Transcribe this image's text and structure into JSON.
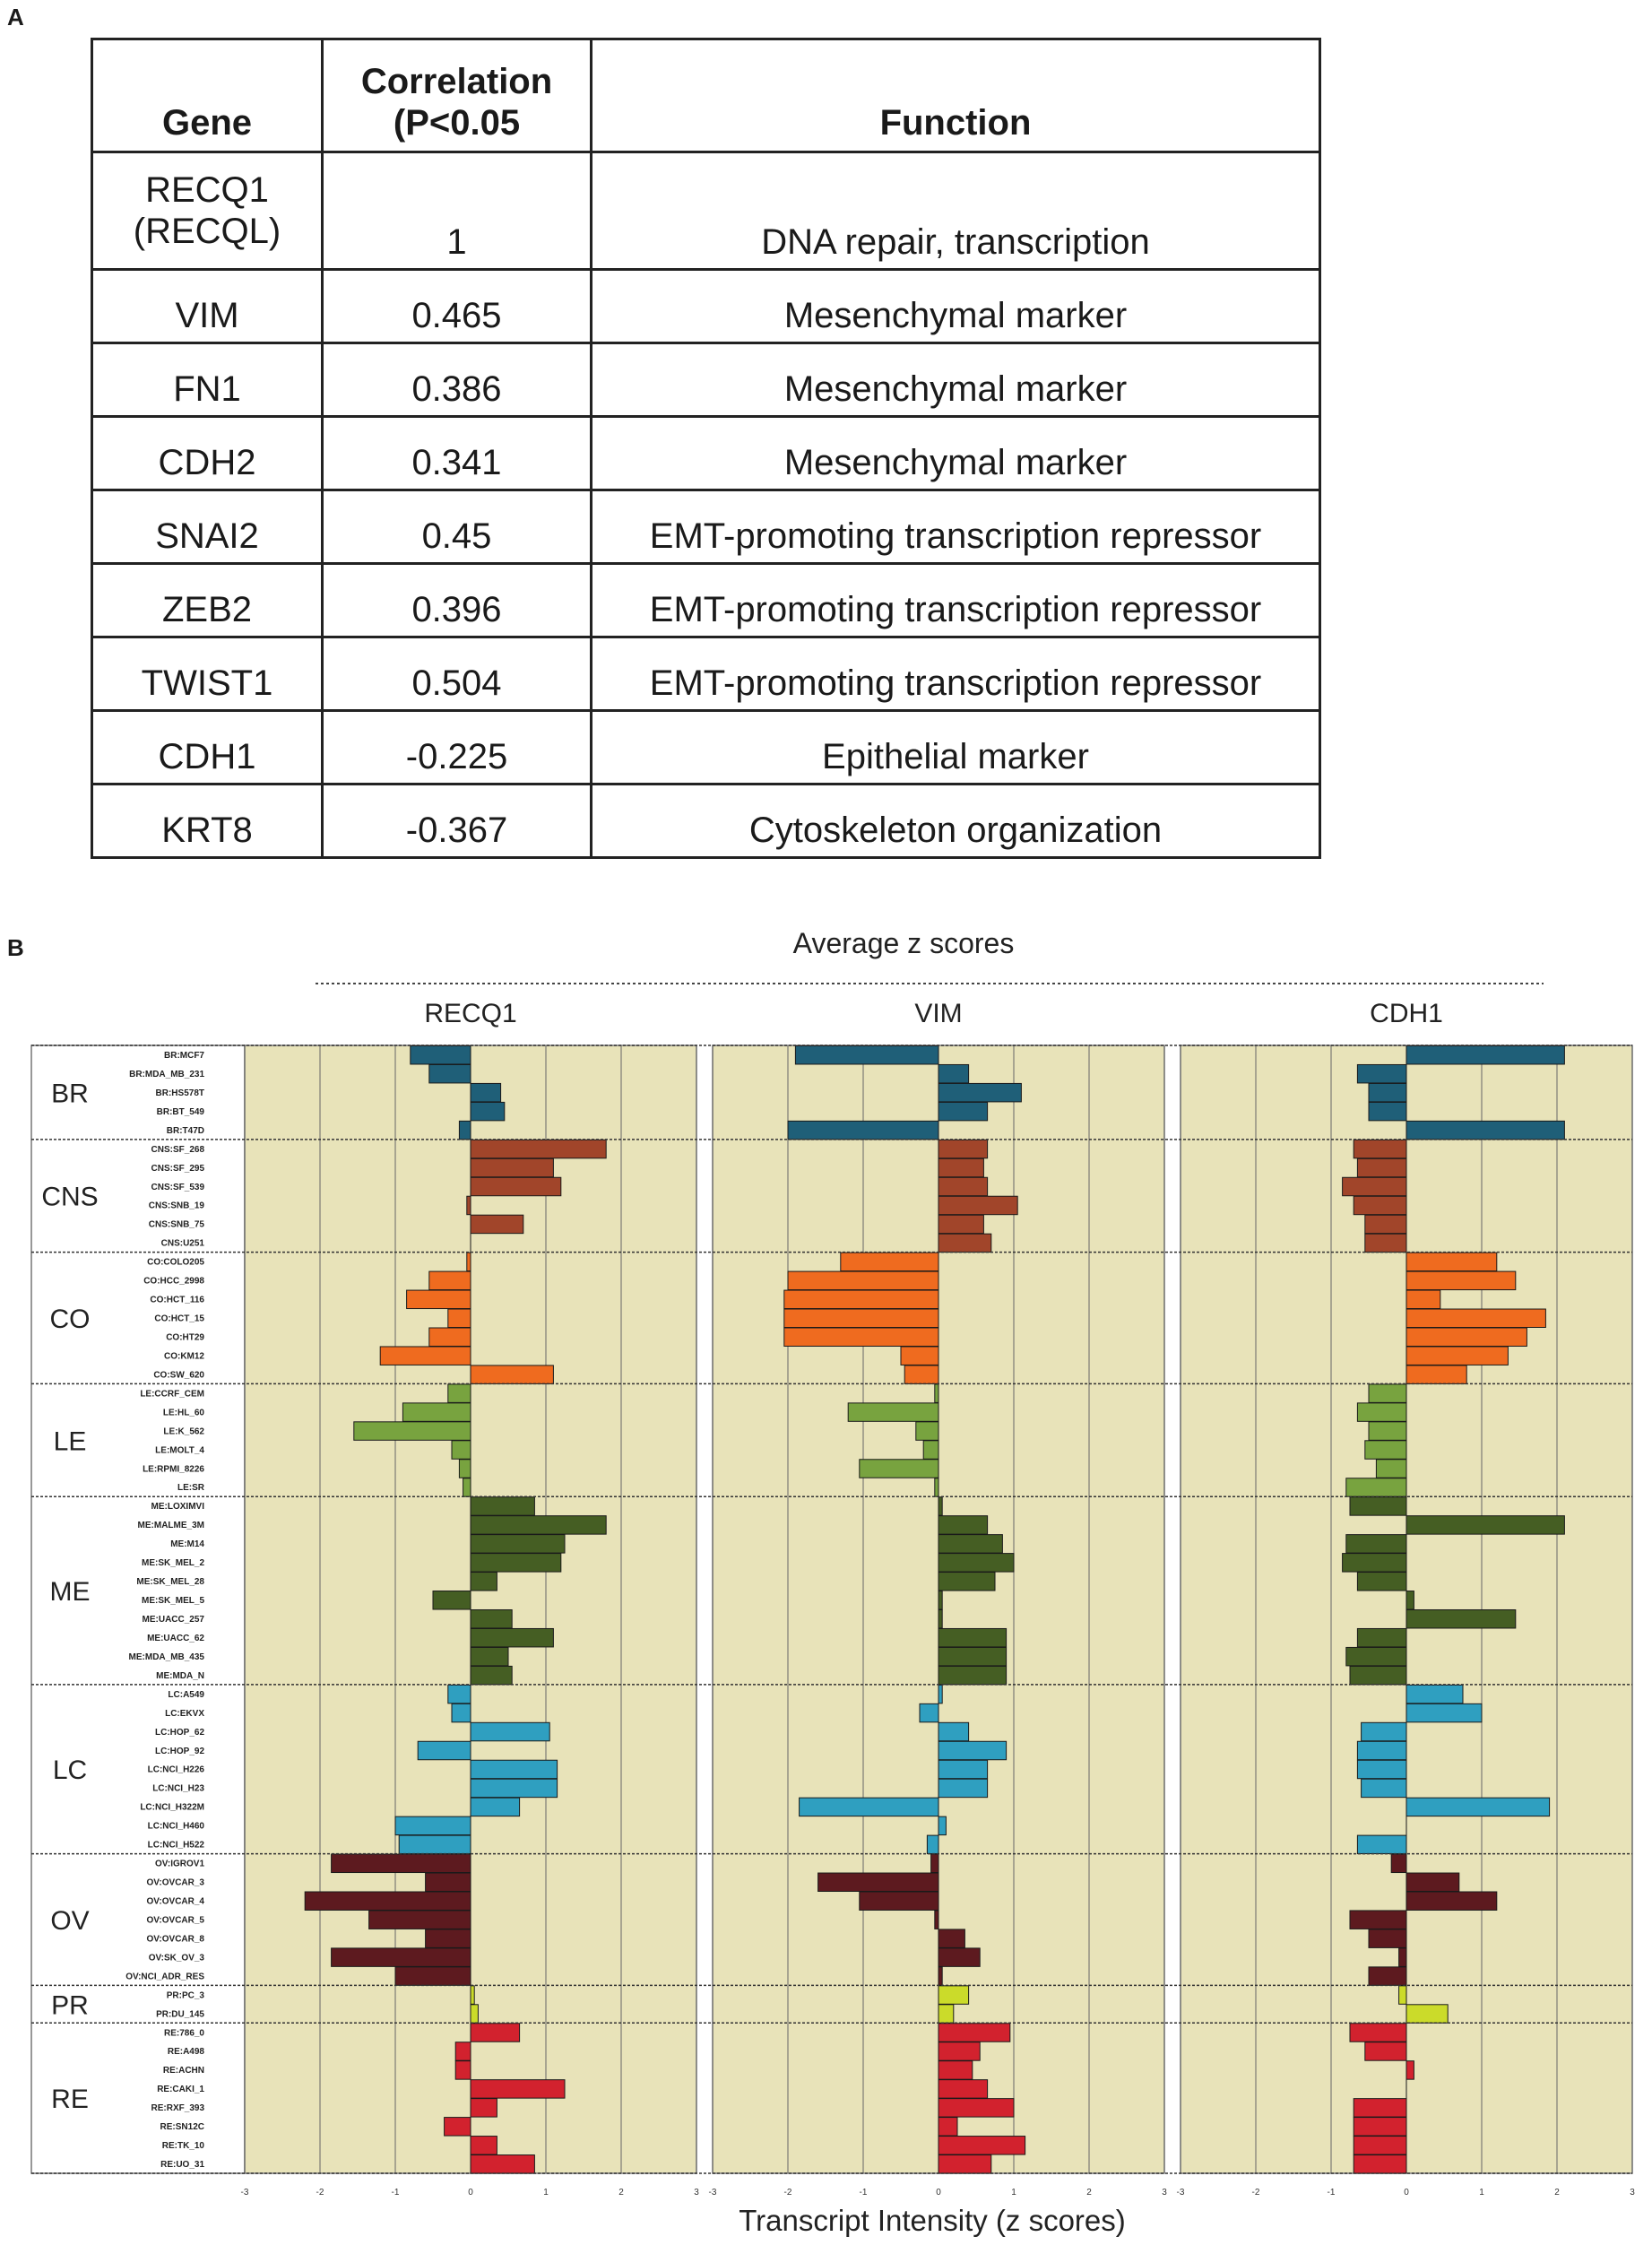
{
  "panel_a_label": "A",
  "panel_b_label": "B",
  "table": {
    "headers": {
      "gene": "Gene",
      "corr_line1": "Correlation",
      "corr_line2": "(P<0.05",
      "function": "Function"
    },
    "rows": [
      {
        "gene_line1": "RECQ1",
        "gene_line2": "(RECQL)",
        "correlation": "1",
        "function": "DNA repair, transcription"
      },
      {
        "gene_line1": "VIM",
        "gene_line2": "",
        "correlation": "0.465",
        "function": "Mesenchymal marker"
      },
      {
        "gene_line1": "FN1",
        "gene_line2": "",
        "correlation": "0.386",
        "function": "Mesenchymal marker"
      },
      {
        "gene_line1": "CDH2",
        "gene_line2": "",
        "correlation": "0.341",
        "function": "Mesenchymal marker"
      },
      {
        "gene_line1": "SNAI2",
        "gene_line2": "",
        "correlation": "0.45",
        "function": "EMT-promoting transcription repressor"
      },
      {
        "gene_line1": "ZEB2",
        "gene_line2": "",
        "correlation": "0.396",
        "function": "EMT-promoting transcription repressor"
      },
      {
        "gene_line1": "TWIST1",
        "gene_line2": "",
        "correlation": "0.504",
        "function": "EMT-promoting transcription repressor"
      },
      {
        "gene_line1": "CDH1",
        "gene_line2": "",
        "correlation": "-0.225",
        "function": "Epithelial marker"
      },
      {
        "gene_line1": "KRT8",
        "gene_line2": "",
        "correlation": "-0.367",
        "function": "Cytoskeleton organization"
      }
    ]
  },
  "chart_data": {
    "type": "bar",
    "orientation": "horizontal",
    "title": "Average z scores",
    "xlabel": "Transcript Intensity (z scores)",
    "xlim": [
      -3,
      3
    ],
    "xticks": [
      "-3",
      "-2",
      "-1",
      "0",
      "1",
      "2",
      "3"
    ],
    "grid": true,
    "panels": [
      "RECQ1",
      "VIM",
      "CDH1"
    ],
    "colors": {
      "BR": "#1f5f78",
      "CNS": "#a1452a",
      "CO": "#ef6b1f",
      "LE": "#78a33f",
      "ME": "#455e23",
      "LC": "#2f9fc0",
      "OV": "#5d1a1f",
      "PR": "#cbdb2a",
      "RE": "#d2222e",
      "background": "#e8e3b9"
    },
    "groups": [
      {
        "name": "BR",
        "lines": [
          {
            "name": "BR:MCF7",
            "values": [
              -0.8,
              -1.9,
              2.1
            ]
          },
          {
            "name": "BR:MDA_MB_231",
            "values": [
              -0.55,
              0.4,
              -0.65
            ]
          },
          {
            "name": "BR:HS578T",
            "values": [
              0.4,
              1.1,
              -0.5
            ]
          },
          {
            "name": "BR:BT_549",
            "values": [
              0.45,
              0.65,
              -0.5
            ]
          },
          {
            "name": "BR:T47D",
            "values": [
              -0.15,
              -2.0,
              2.1
            ]
          }
        ]
      },
      {
        "name": "CNS",
        "lines": [
          {
            "name": "CNS:SF_268",
            "values": [
              1.8,
              0.65,
              -0.7
            ]
          },
          {
            "name": "CNS:SF_295",
            "values": [
              1.1,
              0.6,
              -0.65
            ]
          },
          {
            "name": "CNS:SF_539",
            "values": [
              1.2,
              0.65,
              -0.85
            ]
          },
          {
            "name": "CNS:SNB_19",
            "values": [
              -0.05,
              1.05,
              -0.7
            ]
          },
          {
            "name": "CNS:SNB_75",
            "values": [
              0.7,
              0.6,
              -0.55
            ]
          },
          {
            "name": "CNS:U251",
            "values": [
              0,
              0.7,
              -0.55
            ]
          }
        ]
      },
      {
        "name": "CO",
        "lines": [
          {
            "name": "CO:COLO205",
            "values": [
              -0.05,
              -1.3,
              1.2
            ]
          },
          {
            "name": "CO:HCC_2998",
            "values": [
              -0.55,
              -2.0,
              1.45
            ]
          },
          {
            "name": "CO:HCT_116",
            "values": [
              -0.85,
              -2.05,
              0.45
            ]
          },
          {
            "name": "CO:HCT_15",
            "values": [
              -0.3,
              -2.05,
              1.85
            ]
          },
          {
            "name": "CO:HT29",
            "values": [
              -0.55,
              -2.05,
              1.6
            ]
          },
          {
            "name": "CO:KM12",
            "values": [
              -1.2,
              -0.5,
              1.35
            ]
          },
          {
            "name": "CO:SW_620",
            "values": [
              1.1,
              -0.45,
              0.8
            ]
          }
        ]
      },
      {
        "name": "LE",
        "lines": [
          {
            "name": "LE:CCRF_CEM",
            "values": [
              -0.3,
              -0.05,
              -0.5
            ]
          },
          {
            "name": "LE:HL_60",
            "values": [
              -0.9,
              -1.2,
              -0.65
            ]
          },
          {
            "name": "LE:K_562",
            "values": [
              -1.55,
              -0.3,
              -0.5
            ]
          },
          {
            "name": "LE:MOLT_4",
            "values": [
              -0.25,
              -0.2,
              -0.55
            ]
          },
          {
            "name": "LE:RPMI_8226",
            "values": [
              -0.15,
              -1.05,
              -0.4
            ]
          },
          {
            "name": "LE:SR",
            "values": [
              -0.1,
              -0.05,
              -0.8
            ]
          }
        ]
      },
      {
        "name": "ME",
        "lines": [
          {
            "name": "ME:LOXIMVI",
            "values": [
              0.85,
              0.05,
              -0.75
            ]
          },
          {
            "name": "ME:MALME_3M",
            "values": [
              1.8,
              0.65,
              2.1
            ]
          },
          {
            "name": "ME:M14",
            "values": [
              1.25,
              0.85,
              -0.8
            ]
          },
          {
            "name": "ME:SK_MEL_2",
            "values": [
              1.2,
              1.0,
              -0.85
            ]
          },
          {
            "name": "ME:SK_MEL_28",
            "values": [
              0.35,
              0.75,
              -0.65
            ]
          },
          {
            "name": "ME:SK_MEL_5",
            "values": [
              -0.5,
              0.05,
              0.1
            ]
          },
          {
            "name": "ME:UACC_257",
            "values": [
              0.55,
              0.05,
              1.45
            ]
          },
          {
            "name": "ME:UACC_62",
            "values": [
              1.1,
              0.9,
              -0.65
            ]
          },
          {
            "name": "ME:MDA_MB_435",
            "values": [
              0.5,
              0.9,
              -0.8
            ]
          },
          {
            "name": "ME:MDA_N",
            "values": [
              0.55,
              0.9,
              -0.75
            ]
          }
        ]
      },
      {
        "name": "LC",
        "lines": [
          {
            "name": "LC:A549",
            "values": [
              -0.3,
              0.05,
              0.75
            ]
          },
          {
            "name": "LC:EKVX",
            "values": [
              -0.25,
              -0.25,
              1.0
            ]
          },
          {
            "name": "LC:HOP_62",
            "values": [
              1.05,
              0.4,
              -0.6
            ]
          },
          {
            "name": "LC:HOP_92",
            "values": [
              -0.7,
              0.9,
              -0.65
            ]
          },
          {
            "name": "LC:NCI_H226",
            "values": [
              1.15,
              0.65,
              -0.65
            ]
          },
          {
            "name": "LC:NCI_H23",
            "values": [
              1.15,
              0.65,
              -0.6
            ]
          },
          {
            "name": "LC:NCI_H322M",
            "values": [
              0.65,
              -1.85,
              1.9
            ]
          },
          {
            "name": "LC:NCI_H460",
            "values": [
              -1.0,
              0.1,
              0
            ]
          },
          {
            "name": "LC:NCI_H522",
            "values": [
              -0.95,
              -0.15,
              -0.65
            ]
          }
        ]
      },
      {
        "name": "OV",
        "lines": [
          {
            "name": "OV:IGROV1",
            "values": [
              -1.85,
              -0.1,
              -0.2
            ]
          },
          {
            "name": "OV:OVCAR_3",
            "values": [
              -0.6,
              -1.6,
              0.7
            ]
          },
          {
            "name": "OV:OVCAR_4",
            "values": [
              -2.2,
              -1.05,
              1.2
            ]
          },
          {
            "name": "OV:OVCAR_5",
            "values": [
              -1.35,
              -0.05,
              -0.75
            ]
          },
          {
            "name": "OV:OVCAR_8",
            "values": [
              -0.6,
              0.35,
              -0.5
            ]
          },
          {
            "name": "OV:SK_OV_3",
            "values": [
              -1.85,
              0.55,
              -0.1
            ]
          },
          {
            "name": "OV:NCI_ADR_RES",
            "values": [
              -1.0,
              0.05,
              -0.5
            ]
          }
        ]
      },
      {
        "name": "PR",
        "lines": [
          {
            "name": "PR:PC_3",
            "values": [
              0.05,
              0.4,
              -0.1
            ]
          },
          {
            "name": "PR:DU_145",
            "values": [
              0.1,
              0.2,
              0.55
            ]
          }
        ]
      },
      {
        "name": "RE",
        "lines": [
          {
            "name": "RE:786_0",
            "values": [
              0.65,
              0.95,
              -0.75
            ]
          },
          {
            "name": "RE:A498",
            "values": [
              -0.2,
              0.55,
              -0.55
            ]
          },
          {
            "name": "RE:ACHN",
            "values": [
              -0.2,
              0.45,
              0.1
            ]
          },
          {
            "name": "RE:CAKI_1",
            "values": [
              1.25,
              0.65,
              0
            ]
          },
          {
            "name": "RE:RXF_393",
            "values": [
              0.35,
              1.0,
              -0.7
            ]
          },
          {
            "name": "RE:SN12C",
            "values": [
              -0.35,
              0.25,
              -0.7
            ]
          },
          {
            "name": "RE:TK_10",
            "values": [
              0.35,
              1.15,
              -0.7
            ]
          },
          {
            "name": "RE:UO_31",
            "values": [
              0.85,
              0.7,
              -0.7
            ]
          }
        ]
      }
    ]
  }
}
